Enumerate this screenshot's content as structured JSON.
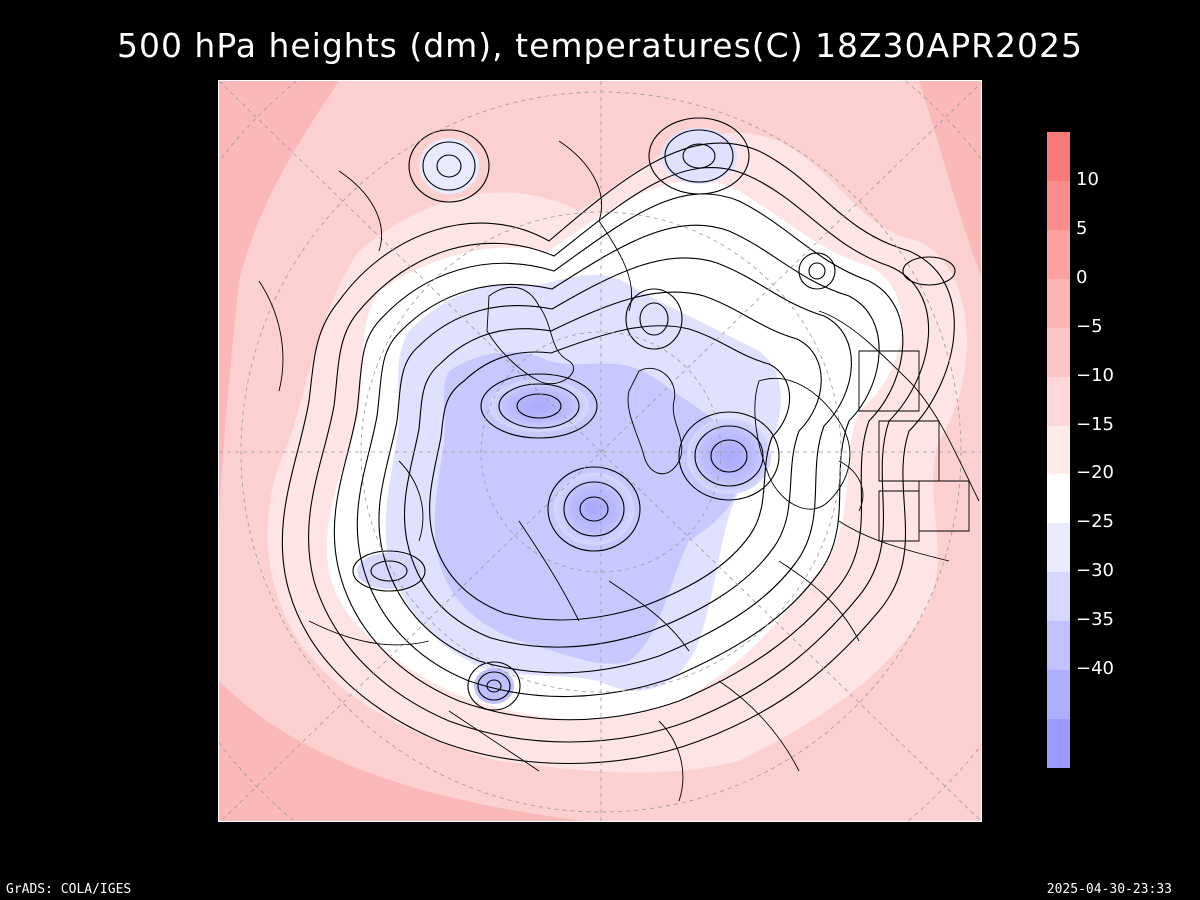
{
  "title": "500 hPa heights (dm), temperatures(C) 18Z30APR2025",
  "colorbar": {
    "labels": [
      "10",
      "5",
      "0",
      "−5",
      "−10",
      "−15",
      "−20",
      "−25",
      "−30",
      "−35",
      "−40"
    ],
    "colors": [
      "#fa7a7a",
      "#fb8c8c",
      "#fca0a0",
      "#fcb4b4",
      "#fdc6c6",
      "#fed8d8",
      "#ffeaea",
      "#ffffff",
      "#eaeaff",
      "#d6d6ff",
      "#c2c2ff",
      "#aeaeff",
      "#9a9aff"
    ]
  },
  "footer": {
    "left": "GrADS: COLA/IGES",
    "right": "2025-04-30-23:33"
  }
}
